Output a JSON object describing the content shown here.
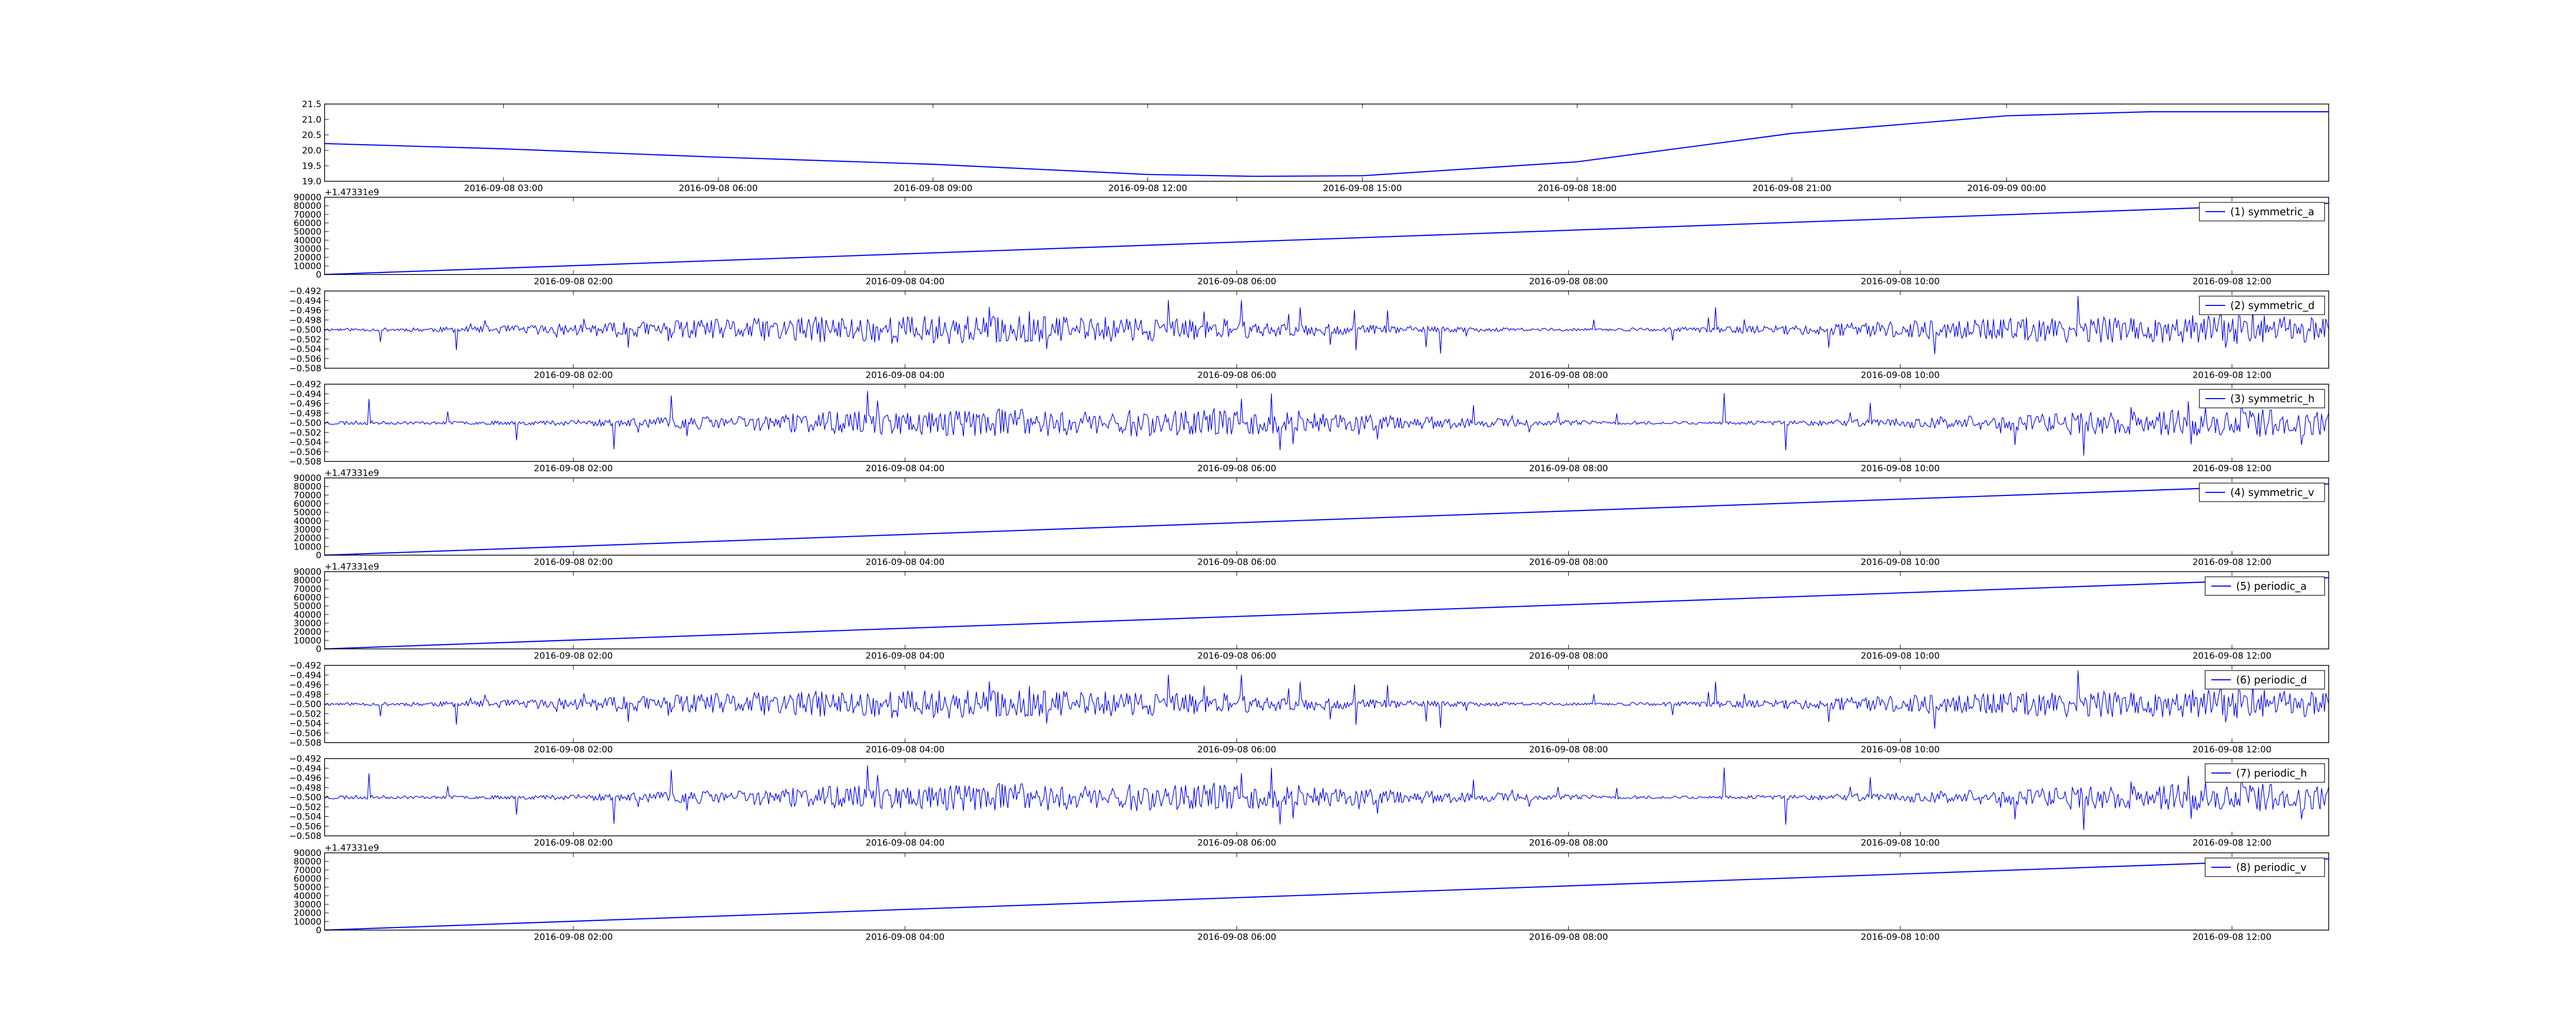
{
  "chart_data": [
    {
      "type": "line",
      "panel": 0,
      "series_color": "#0000ff",
      "legend": null,
      "ylim": [
        19.0,
        21.5
      ],
      "yticks": [
        "19.0",
        "19.5",
        "20.0",
        "20.5",
        "21.0",
        "21.5"
      ],
      "y_offset_label": "",
      "xlim": [
        "2016-09-08 00:30",
        "2016-09-09 04:30"
      ],
      "xticks": [
        "2016-09-08 03:00",
        "2016-09-08 06:00",
        "2016-09-08 09:00",
        "2016-09-08 12:00",
        "2016-09-08 15:00",
        "2016-09-08 18:00",
        "2016-09-08 21:00",
        "2016-09-09 00:00"
      ],
      "series": [
        {
          "x": [
            "2016-09-08 00:30",
            "2016-09-08 03:00",
            "2016-09-08 06:00",
            "2016-09-08 09:00",
            "2016-09-08 12:00",
            "2016-09-08 13:30",
            "2016-09-08 15:00",
            "2016-09-08 18:00",
            "2016-09-08 21:00",
            "2016-09-09 00:00",
            "2016-09-09 02:00",
            "2016-09-09 04:30"
          ],
          "values": [
            20.22,
            20.05,
            19.78,
            19.55,
            19.22,
            19.16,
            19.18,
            19.63,
            20.55,
            21.12,
            21.25,
            21.25
          ]
        }
      ]
    },
    {
      "type": "line",
      "panel": 1,
      "series_color": "#0000ff",
      "legend": "(1) symmetric_a",
      "ylim": [
        0,
        90000
      ],
      "yticks": [
        "0",
        "10000",
        "20000",
        "30000",
        "40000",
        "50000",
        "60000",
        "70000",
        "80000",
        "90000"
      ],
      "y_offset_label": "+1.47331e9",
      "xlim": [
        "2016-09-08 00:30",
        "2016-09-08 12:35"
      ],
      "xticks": [
        "2016-09-08 02:00",
        "2016-09-08 04:00",
        "2016-09-08 06:00",
        "2016-09-08 08:00",
        "2016-09-08 10:00",
        "2016-09-08 12:00"
      ],
      "series": [
        {
          "x": [
            "2016-09-08 00:30",
            "2016-09-08 12:35"
          ],
          "values": [
            0,
            83000
          ]
        }
      ]
    },
    {
      "type": "line",
      "panel": 2,
      "series_color": "#0000ff",
      "legend": "(2) symmetric_d",
      "ylim": [
        -0.508,
        -0.492
      ],
      "yticks": [
        "−0.508",
        "−0.506",
        "−0.504",
        "−0.502",
        "−0.500",
        "−0.498",
        "−0.496",
        "−0.494",
        "−0.492"
      ],
      "y_offset_label": "",
      "xlim": [
        "2016-09-08 00:30",
        "2016-09-08 12:35"
      ],
      "xticks": [
        "2016-09-08 02:00",
        "2016-09-08 04:00",
        "2016-09-08 06:00",
        "2016-09-08 08:00",
        "2016-09-08 10:00",
        "2016-09-08 12:00"
      ],
      "noise": {
        "center": -0.5,
        "amplitude": 0.003,
        "points": 1400,
        "seed": 11
      }
    },
    {
      "type": "line",
      "panel": 3,
      "series_color": "#0000ff",
      "legend": "(3) symmetric_h",
      "ylim": [
        -0.508,
        -0.492
      ],
      "yticks": [
        "−0.508",
        "−0.506",
        "−0.504",
        "−0.502",
        "−0.500",
        "−0.498",
        "−0.496",
        "−0.494",
        "−0.492"
      ],
      "y_offset_label": "",
      "xlim": [
        "2016-09-08 00:30",
        "2016-09-08 12:35"
      ],
      "xticks": [
        "2016-09-08 02:00",
        "2016-09-08 04:00",
        "2016-09-08 06:00",
        "2016-09-08 08:00",
        "2016-09-08 10:00",
        "2016-09-08 12:00"
      ],
      "noise": {
        "center": -0.5,
        "amplitude": 0.003,
        "points": 1400,
        "seed": 23
      }
    },
    {
      "type": "line",
      "panel": 4,
      "series_color": "#0000ff",
      "legend": "(4) symmetric_v",
      "ylim": [
        0,
        90000
      ],
      "yticks": [
        "0",
        "10000",
        "20000",
        "30000",
        "40000",
        "50000",
        "60000",
        "70000",
        "80000",
        "90000"
      ],
      "y_offset_label": "+1.47331e9",
      "xlim": [
        "2016-09-08 00:30",
        "2016-09-08 12:35"
      ],
      "xticks": [
        "2016-09-08 02:00",
        "2016-09-08 04:00",
        "2016-09-08 06:00",
        "2016-09-08 08:00",
        "2016-09-08 10:00",
        "2016-09-08 12:00"
      ],
      "series": [
        {
          "x": [
            "2016-09-08 00:30",
            "2016-09-08 12:35"
          ],
          "values": [
            0,
            83000
          ]
        }
      ]
    },
    {
      "type": "line",
      "panel": 5,
      "series_color": "#0000ff",
      "legend": "(5) periodic_a",
      "ylim": [
        0,
        90000
      ],
      "yticks": [
        "0",
        "10000",
        "20000",
        "30000",
        "40000",
        "50000",
        "60000",
        "70000",
        "80000",
        "90000"
      ],
      "y_offset_label": "+1.47331e9",
      "xlim": [
        "2016-09-08 00:30",
        "2016-09-08 12:35"
      ],
      "xticks": [
        "2016-09-08 02:00",
        "2016-09-08 04:00",
        "2016-09-08 06:00",
        "2016-09-08 08:00",
        "2016-09-08 10:00",
        "2016-09-08 12:00"
      ],
      "series": [
        {
          "x": [
            "2016-09-08 00:30",
            "2016-09-08 12:35"
          ],
          "values": [
            0,
            83000
          ]
        }
      ]
    },
    {
      "type": "line",
      "panel": 6,
      "series_color": "#0000ff",
      "legend": "(6) periodic_d",
      "ylim": [
        -0.508,
        -0.492
      ],
      "yticks": [
        "−0.508",
        "−0.506",
        "−0.504",
        "−0.502",
        "−0.500",
        "−0.498",
        "−0.496",
        "−0.494",
        "−0.492"
      ],
      "y_offset_label": "",
      "xlim": [
        "2016-09-08 00:30",
        "2016-09-08 12:35"
      ],
      "xticks": [
        "2016-09-08 02:00",
        "2016-09-08 04:00",
        "2016-09-08 06:00",
        "2016-09-08 08:00",
        "2016-09-08 10:00",
        "2016-09-08 12:00"
      ],
      "noise": {
        "center": -0.5,
        "amplitude": 0.003,
        "points": 1400,
        "seed": 11
      }
    },
    {
      "type": "line",
      "panel": 7,
      "series_color": "#0000ff",
      "legend": "(7) periodic_h",
      "ylim": [
        -0.508,
        -0.492
      ],
      "yticks": [
        "−0.508",
        "−0.506",
        "−0.504",
        "−0.502",
        "−0.500",
        "−0.498",
        "−0.496",
        "−0.494",
        "−0.492"
      ],
      "y_offset_label": "",
      "xlim": [
        "2016-09-08 00:30",
        "2016-09-08 12:35"
      ],
      "xticks": [
        "2016-09-08 02:00",
        "2016-09-08 04:00",
        "2016-09-08 06:00",
        "2016-09-08 08:00",
        "2016-09-08 10:00",
        "2016-09-08 12:00"
      ],
      "noise": {
        "center": -0.5,
        "amplitude": 0.003,
        "points": 1400,
        "seed": 23
      }
    },
    {
      "type": "line",
      "panel": 8,
      "series_color": "#0000ff",
      "legend": "(8) periodic_v",
      "ylim": [
        0,
        90000
      ],
      "yticks": [
        "0",
        "10000",
        "20000",
        "30000",
        "40000",
        "50000",
        "60000",
        "70000",
        "80000",
        "90000"
      ],
      "y_offset_label": "+1.47331e9",
      "xlim": [
        "2016-09-08 00:30",
        "2016-09-08 12:35"
      ],
      "xticks": [
        "2016-09-08 02:00",
        "2016-09-08 04:00",
        "2016-09-08 06:00",
        "2016-09-08 08:00",
        "2016-09-08 10:00",
        "2016-09-08 12:00"
      ],
      "series": [
        {
          "x": [
            "2016-09-08 00:30",
            "2016-09-08 12:35"
          ],
          "values": [
            0,
            83000
          ]
        }
      ]
    }
  ]
}
